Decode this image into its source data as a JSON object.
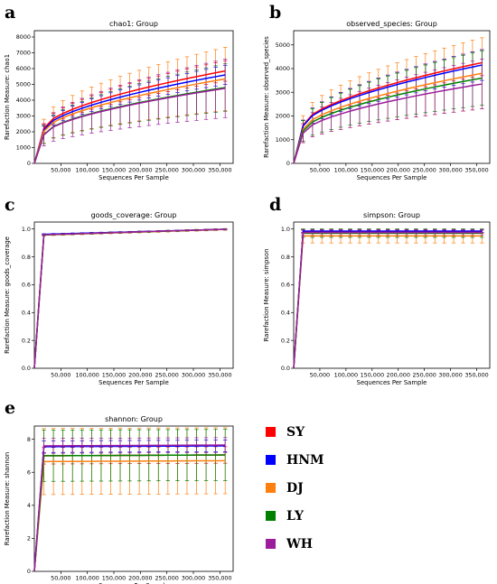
{
  "colors": {
    "SY": "#ff0000",
    "HNM": "#0000ff",
    "DJ": "#ff7f0e",
    "LY": "#008000",
    "WH": "#9b1d9b"
  },
  "legend": [
    "SY",
    "HNM",
    "DJ",
    "LY",
    "WH"
  ],
  "chart_data": [
    {
      "panel": "a",
      "type": "line",
      "title": "chao1: Group",
      "xlabel": "Sequences Per Sample",
      "ylabel": "Rarefaction Measure: chao1",
      "xlim": [
        0,
        375000
      ],
      "ylim": [
        0,
        8400
      ],
      "yticks": [
        0,
        1000,
        2000,
        3000,
        4000,
        5000,
        6000,
        7000,
        8000
      ],
      "xticks": [
        50000,
        100000,
        150000,
        200000,
        250000,
        300000,
        350000
      ],
      "xticklabels": [
        "50,000",
        "100,000",
        "150,000",
        "200,000",
        "250,000",
        "300,000",
        "350,000"
      ],
      "x": [
        0,
        18000,
        36000,
        54000,
        72000,
        90000,
        108000,
        126000,
        144000,
        162000,
        180000,
        198000,
        216000,
        234000,
        252000,
        270000,
        288000,
        306000,
        324000,
        342000,
        360000
      ],
      "series": [
        {
          "name": "SY",
          "end": 5850,
          "err": 650
        },
        {
          "name": "HNM",
          "end": 5600,
          "err": 600
        },
        {
          "name": "DJ",
          "end": 5350,
          "err": 2000
        },
        {
          "name": "LY",
          "end": 4800,
          "err": 1500
        },
        {
          "name": "WH",
          "end": 4750,
          "err": 1850
        }
      ]
    },
    {
      "panel": "b",
      "type": "line",
      "title": "observed_species: Group",
      "xlabel": "Sequences Per Sample",
      "ylabel": "Rarefaction Measure: observed_species",
      "xlim": [
        0,
        375000
      ],
      "ylim": [
        0,
        5600
      ],
      "yticks": [
        0,
        1000,
        2000,
        3000,
        4000,
        5000
      ],
      "xticks": [
        50000,
        100000,
        150000,
        200000,
        250000,
        300000,
        350000
      ],
      "xticklabels": [
        "50,000",
        "100,000",
        "150,000",
        "200,000",
        "250,000",
        "300,000",
        "350,000"
      ],
      "x": [
        0,
        18000,
        36000,
        54000,
        72000,
        90000,
        108000,
        126000,
        144000,
        162000,
        180000,
        198000,
        216000,
        234000,
        252000,
        270000,
        288000,
        306000,
        324000,
        342000,
        360000
      ],
      "series": [
        {
          "name": "SY",
          "end": 4250,
          "err": 550
        },
        {
          "name": "HNM",
          "end": 4150,
          "err": 650
        },
        {
          "name": "DJ",
          "end": 3800,
          "err": 1500
        },
        {
          "name": "LY",
          "end": 3600,
          "err": 1150
        },
        {
          "name": "WH",
          "end": 3350,
          "err": 1050
        }
      ]
    },
    {
      "panel": "c",
      "type": "line",
      "title": "goods_coverage: Group",
      "xlabel": "Sequences Per Sample",
      "ylabel": "Rarefaction Measure: goods_coverage",
      "xlim": [
        0,
        375000
      ],
      "ylim": [
        0,
        1.05
      ],
      "yticks": [
        0,
        0.2,
        0.4,
        0.6,
        0.8,
        1.0
      ],
      "yticklabels": [
        "0.0",
        "0.2",
        "0.4",
        "0.6",
        "0.8",
        "1.0"
      ],
      "xticks": [
        50000,
        100000,
        150000,
        200000,
        250000,
        300000,
        350000
      ],
      "xticklabels": [
        "50,000",
        "100,000",
        "150,000",
        "200,000",
        "250,000",
        "300,000",
        "350,000"
      ],
      "x": [
        0,
        18000,
        36000,
        54000,
        72000,
        90000,
        108000,
        126000,
        144000,
        162000,
        180000,
        198000,
        216000,
        234000,
        252000,
        270000,
        288000,
        306000,
        324000,
        342000,
        360000
      ],
      "series": [
        {
          "name": "SY",
          "start": 0.96,
          "end": 0.998,
          "err": 0.004
        },
        {
          "name": "HNM",
          "start": 0.962,
          "end": 0.998,
          "err": 0.004
        },
        {
          "name": "DJ",
          "start": 0.957,
          "end": 0.997,
          "err": 0.006
        },
        {
          "name": "LY",
          "start": 0.958,
          "end": 0.998,
          "err": 0.005
        },
        {
          "name": "WH",
          "start": 0.959,
          "end": 0.998,
          "err": 0.004
        }
      ]
    },
    {
      "panel": "d",
      "type": "line",
      "title": "simpson: Group",
      "xlabel": "Sequences Per Sample",
      "ylabel": "Rarefaction Measure: simpson",
      "xlim": [
        0,
        375000
      ],
      "ylim": [
        0,
        1.05
      ],
      "yticks": [
        0,
        0.2,
        0.4,
        0.6,
        0.8,
        1.0
      ],
      "yticklabels": [
        "0.0",
        "0.2",
        "0.4",
        "0.6",
        "0.8",
        "1.0"
      ],
      "xticks": [
        50000,
        100000,
        150000,
        200000,
        250000,
        300000,
        350000
      ],
      "xticklabels": [
        "50,000",
        "100,000",
        "150,000",
        "200,000",
        "250,000",
        "300,000",
        "350,000"
      ],
      "x": [
        0,
        18000,
        36000,
        54000,
        72000,
        90000,
        108000,
        126000,
        144000,
        162000,
        180000,
        198000,
        216000,
        234000,
        252000,
        270000,
        288000,
        306000,
        324000,
        342000,
        360000
      ],
      "series": [
        {
          "name": "SY",
          "start": 0.98,
          "end": 0.98,
          "err": 0.012
        },
        {
          "name": "HNM",
          "start": 0.985,
          "end": 0.985,
          "err": 0.01
        },
        {
          "name": "DJ",
          "start": 0.95,
          "end": 0.95,
          "err": 0.05
        },
        {
          "name": "LY",
          "start": 0.97,
          "end": 0.97,
          "err": 0.03
        },
        {
          "name": "WH",
          "start": 0.975,
          "end": 0.975,
          "err": 0.02
        }
      ]
    },
    {
      "panel": "e",
      "type": "line",
      "title": "shannon: Group",
      "xlabel": "Sequences Per Sample",
      "ylabel": "Rarefaction Measure: shannon",
      "xlim": [
        0,
        375000
      ],
      "ylim": [
        0,
        8.8
      ],
      "yticks": [
        0,
        2,
        4,
        6,
        8
      ],
      "xticks": [
        50000,
        100000,
        150000,
        200000,
        250000,
        300000,
        350000
      ],
      "xticklabels": [
        "50,000",
        "100,000",
        "150,000",
        "200,000",
        "250,000",
        "300,000",
        "350,000"
      ],
      "x": [
        0,
        18000,
        36000,
        54000,
        72000,
        90000,
        108000,
        126000,
        144000,
        162000,
        180000,
        198000,
        216000,
        234000,
        252000,
        270000,
        288000,
        306000,
        324000,
        342000,
        360000
      ],
      "series": [
        {
          "name": "SY",
          "start": 7.0,
          "end": 7.05,
          "err": 0.5
        },
        {
          "name": "HNM",
          "start": 7.55,
          "end": 7.6,
          "err": 0.35
        },
        {
          "name": "DJ",
          "start": 6.65,
          "end": 6.7,
          "err": 2.0
        },
        {
          "name": "LY",
          "start": 7.0,
          "end": 7.05,
          "err": 1.55
        },
        {
          "name": "WH",
          "start": 7.6,
          "end": 7.65,
          "err": 0.45
        }
      ]
    }
  ]
}
